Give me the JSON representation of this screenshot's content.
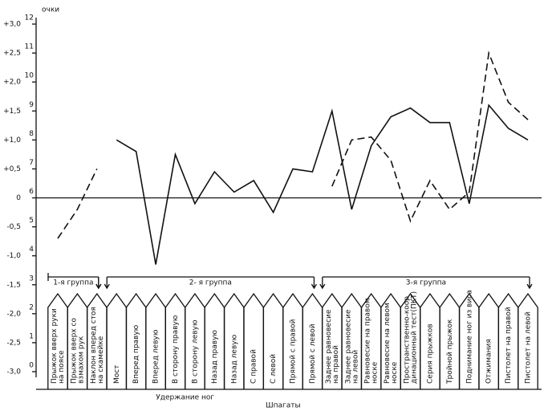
{
  "chart_data": {
    "type": "line",
    "y_axis_label": "очки",
    "ylim": [
      -3.0,
      3.0
    ],
    "yticks": [
      {
        "value": 3.0,
        "label": "+3,0"
      },
      {
        "value": 2.5,
        "label": "+2,5"
      },
      {
        "value": 2.0,
        "label": "+2,0"
      },
      {
        "value": 1.5,
        "label": "+1,5"
      },
      {
        "value": 1.0,
        "label": "+1,0"
      },
      {
        "value": 0.5,
        "label": "+0,5"
      },
      0,
      {
        "value": -0.5,
        "label": "-0,5"
      },
      {
        "value": -1.0,
        "label": "-1,0"
      },
      {
        "value": -1.5,
        "label": "-1,5"
      },
      {
        "value": -2.0,
        "label": "-2,0"
      },
      {
        "value": -2.5,
        "label": "-2,5"
      },
      {
        "value": -3.0,
        "label": "-3,0"
      }
    ],
    "y2lim": [
      0,
      12
    ],
    "y2ticks": [
      12,
      11,
      10,
      9,
      8,
      7,
      6,
      5,
      4,
      3,
      2,
      1,
      0
    ],
    "categories": [
      [
        "Прыжок вверх руки",
        "на поясе"
      ],
      [
        "Прыжок вверх со",
        "взмахом рук"
      ],
      [
        "Наклон вперед стоя",
        "на скамейке"
      ],
      [
        "Мост"
      ],
      [
        "Вперед правую"
      ],
      [
        "Вперед левую"
      ],
      [
        "В сторону правую"
      ],
      [
        "В сторону левую"
      ],
      [
        "Назад правую"
      ],
      [
        "Назад левую"
      ],
      [
        "С правой"
      ],
      [
        "С левой"
      ],
      [
        "Прямой с правой"
      ],
      [
        "Прямой с левой"
      ],
      [
        "Заднее равновесие",
        "на правой"
      ],
      [
        "Заднее равновесие",
        "на левой"
      ],
      [
        "Равновесие на правом",
        "носке"
      ],
      [
        "Равновесие на левом",
        "носке"
      ],
      [
        "Пространственно-коор",
        "динационный тест(ПКТ)"
      ],
      [
        "Серия прыжков"
      ],
      [
        "Тройной прыжок"
      ],
      [
        "Поднимание ног из виса"
      ],
      [
        "Отжимания"
      ],
      [
        "Пистолет на правой"
      ],
      [
        "Пистолет на левой"
      ]
    ],
    "groups": [
      {
        "label": "1-я группа",
        "from": 0,
        "to": 2
      },
      {
        "label": "2- я группа",
        "from": 3,
        "to": 13
      },
      {
        "label": "3-я группа",
        "from": 14,
        "to": 24
      }
    ],
    "subgroups": [
      {
        "label": "Удержание ног",
        "from": 4,
        "to": 9
      },
      {
        "label": "Шпагаты",
        "from": 10,
        "to": 13
      }
    ],
    "series": [
      {
        "color": "#111",
        "dash": false,
        "values": [
          null,
          null,
          null,
          1.0,
          0.8,
          -1.15,
          0.75,
          -0.1,
          0.45,
          0.1,
          0.3,
          -0.25,
          0.5,
          0.45,
          1.5,
          -0.2,
          0.9,
          1.4,
          1.55,
          1.3,
          1.3,
          -0.1,
          1.6,
          1.2,
          1.0
        ]
      },
      {
        "color": "#111",
        "dash": true,
        "values": [
          -0.7,
          -0.2,
          0.5,
          null,
          null,
          null,
          null,
          null,
          null,
          null,
          null,
          null,
          null,
          null,
          0.2,
          1.0,
          1.05,
          0.65,
          -0.4,
          0.3,
          -0.2,
          0.1,
          2.5,
          1.65,
          1.35
        ]
      }
    ]
  }
}
